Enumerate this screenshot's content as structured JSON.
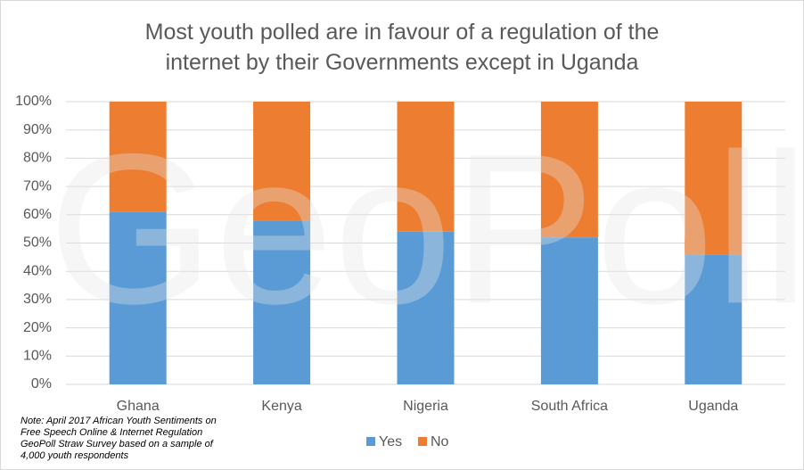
{
  "chart_data": {
    "type": "stacked_bar",
    "title": "Most youth polled are in favour of a regulation of the internet by their Governments except in Uganda",
    "watermark": "GeoPoll",
    "note": "Note: April 2017 African Youth Sentiments on Free Speech Online & Internet Regulation GeoPoll Straw Survey based on a sample of 4,000 youth respondents",
    "categories": [
      "Ghana",
      "Kenya",
      "Nigeria",
      "South Africa",
      "Uganda"
    ],
    "series": [
      {
        "name": "Yes",
        "color": "#5b9bd5",
        "values": [
          61,
          58,
          54,
          52,
          46
        ]
      },
      {
        "name": "No",
        "color": "#ed7d31",
        "values": [
          39,
          42,
          46,
          48,
          54
        ]
      }
    ],
    "ylim": [
      0,
      100
    ],
    "yticks": [
      {
        "value": 0,
        "label": "0%"
      },
      {
        "value": 10,
        "label": "10%"
      },
      {
        "value": 20,
        "label": "20%"
      },
      {
        "value": 30,
        "label": "30%"
      },
      {
        "value": 40,
        "label": "40%"
      },
      {
        "value": 50,
        "label": "50%"
      },
      {
        "value": 60,
        "label": "60%"
      },
      {
        "value": 70,
        "label": "70%"
      },
      {
        "value": 80,
        "label": "80%"
      },
      {
        "value": 90,
        "label": "90%"
      },
      {
        "value": 100,
        "label": "100%"
      }
    ],
    "grid": true,
    "legend": "bottom"
  }
}
